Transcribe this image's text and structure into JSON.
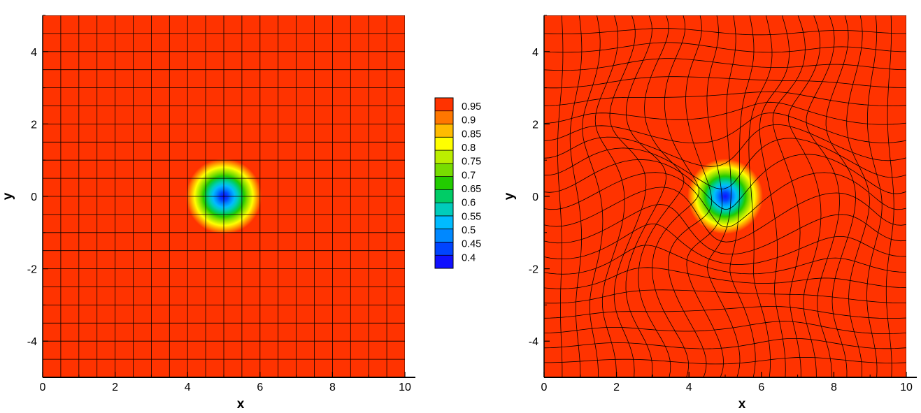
{
  "chart_data": [
    {
      "type": "heatmap",
      "mesh": "cartesian",
      "xlabel": "x",
      "ylabel": "y",
      "xlim": [
        0,
        10
      ],
      "ylim": [
        -5,
        5
      ],
      "xticks": [
        0,
        2,
        4,
        6,
        8,
        10
      ],
      "yticks": [
        -4,
        -2,
        0,
        2,
        4
      ],
      "grid_cells": [
        20,
        20
      ],
      "vortex_center": [
        5,
        0
      ],
      "min_value": 0.4,
      "max_value": 1.0
    },
    {
      "type": "heatmap",
      "mesh": "unstructured",
      "xlabel": "x",
      "ylabel": "y",
      "xlim": [
        0,
        10
      ],
      "ylim": [
        -5,
        5
      ],
      "xticks": [
        0,
        2,
        4,
        6,
        8,
        10
      ],
      "yticks": [
        -4,
        -2,
        0,
        2,
        4
      ],
      "vortex_center": [
        5,
        0
      ],
      "min_value": 0.4,
      "max_value": 1.0
    }
  ],
  "colorbar": {
    "levels": [
      "0.95",
      "0.9",
      "0.85",
      "0.8",
      "0.75",
      "0.7",
      "0.65",
      "0.6",
      "0.55",
      "0.5",
      "0.45",
      "0.4"
    ],
    "colors": [
      "#ff3300",
      "#ff7700",
      "#ffbb00",
      "#ffff00",
      "#bbee00",
      "#77dd00",
      "#22cc00",
      "#00cc66",
      "#00ccbb",
      "#00bbff",
      "#0088ff",
      "#0044ff",
      "#1010ff"
    ]
  }
}
